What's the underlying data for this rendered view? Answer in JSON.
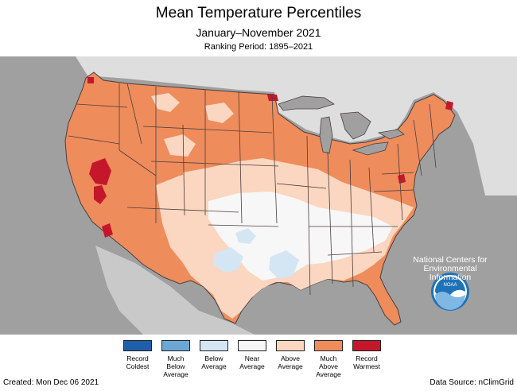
{
  "header": {
    "title": "Mean Temperature Percentiles",
    "subtitle": "January–November 2021",
    "ranking": "Ranking Period: 1895–2021"
  },
  "map": {
    "base_category": "Much Above Average",
    "colors": {
      "background": "#a0a0a0",
      "canada": "#dedede",
      "lakes": "#a0a0a0",
      "state_border": "#4a3f3f"
    }
  },
  "legend": {
    "items": [
      {
        "label": "Record Coldest",
        "color": "#1f5ea8"
      },
      {
        "label": "Much Below Average",
        "color": "#6ba7d6"
      },
      {
        "label": "Below Average",
        "color": "#d4e6f4"
      },
      {
        "label": "Near Average",
        "color": "#f7f7f7"
      },
      {
        "label": "Above Average",
        "color": "#fbd6c0"
      },
      {
        "label": "Much Above Average",
        "color": "#ee8c5c"
      },
      {
        "label": "Record Warmest",
        "color": "#c4172c"
      }
    ]
  },
  "noaa": {
    "logo_text": "NOAA",
    "lines": [
      "National Centers for",
      "Environmental",
      "Information"
    ]
  },
  "footer": {
    "created": "Created: Mon Dec 06 2021",
    "source": "Data Source: nClimGrid"
  }
}
